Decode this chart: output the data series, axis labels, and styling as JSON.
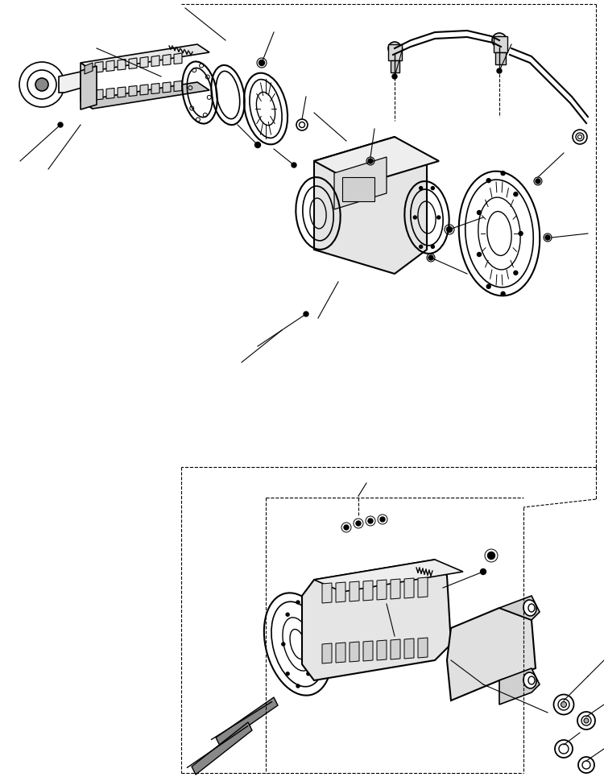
{
  "background_color": "#ffffff",
  "line_color": "#000000",
  "line_width": 1.0,
  "fig_width": 7.5,
  "fig_height": 9.65,
  "dpi": 100
}
